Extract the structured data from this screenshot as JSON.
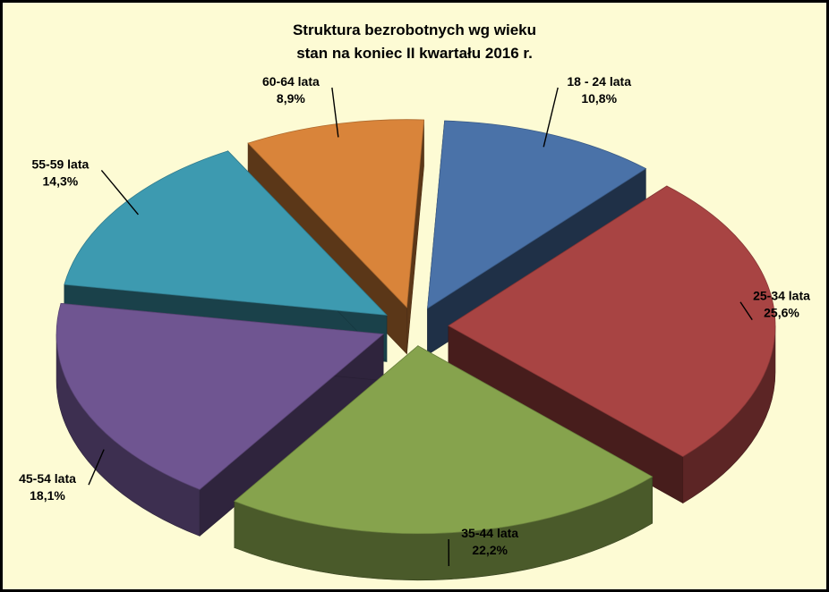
{
  "chart_data": {
    "type": "pie",
    "title_lines": [
      "Struktura bezrobotnych wg wieku",
      "stan na koniec II kwartału 2016 r."
    ],
    "categories": [
      "18 - 24 lata",
      "25-34 lata",
      "35-44 lata",
      "45-54 lata",
      "55-59 lata",
      "60-64 lata"
    ],
    "values": [
      10.8,
      25.6,
      22.2,
      18.1,
      14.3,
      8.9
    ],
    "value_labels": [
      "10,8%",
      "25,6%",
      "22,2%",
      "18,1%",
      "14,3%",
      "8,9%"
    ],
    "colors": [
      "#4a72a8",
      "#a84443",
      "#86a34d",
      "#6f5591",
      "#3d9ab0",
      "#d9843a"
    ],
    "style": "3d-exploded",
    "legend": "none"
  },
  "background_color": "#fdfbd4"
}
